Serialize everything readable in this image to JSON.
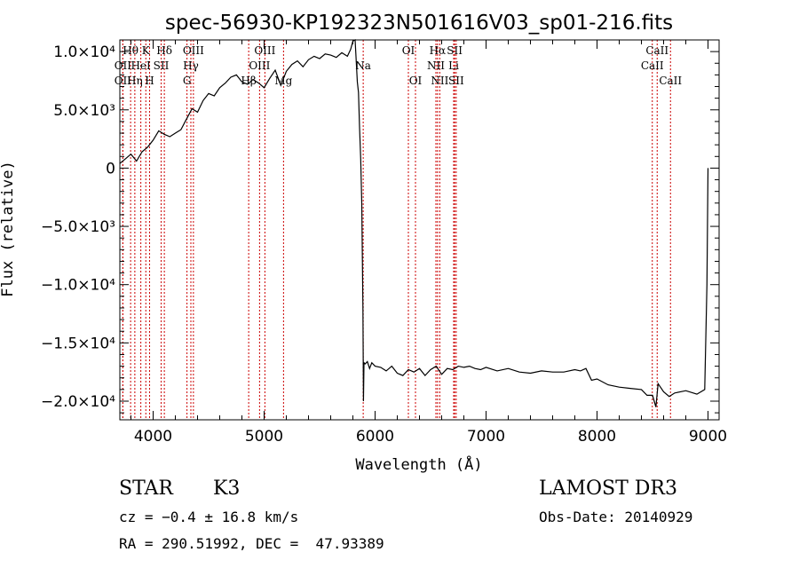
{
  "chart_data": {
    "type": "line",
    "title": "spec-56930-KP192323N501616V03_sp01-216.fits",
    "xlabel": "Wavelength (Å)",
    "ylabel": "Flux (relative)",
    "xlim": [
      3700,
      9100
    ],
    "ylim": [
      -21600,
      11000
    ],
    "x_ticks": [
      {
        "value": 4000,
        "label": "4000"
      },
      {
        "value": 5000,
        "label": "5000"
      },
      {
        "value": 6000,
        "label": "6000"
      },
      {
        "value": 7000,
        "label": "7000"
      },
      {
        "value": 8000,
        "label": "8000"
      },
      {
        "value": 9000,
        "label": "9000"
      }
    ],
    "y_ticks": [
      {
        "value": 10000,
        "label": "1.0×10⁴"
      },
      {
        "value": 5000,
        "label": "5.0×10³"
      },
      {
        "value": 0,
        "label": "0"
      },
      {
        "value": -5000,
        "label": "−5.0×10³"
      },
      {
        "value": -10000,
        "label": "−1.0×10⁴"
      },
      {
        "value": -15000,
        "label": "−1.5×10⁴"
      },
      {
        "value": -20000,
        "label": "−2.0×10⁴"
      }
    ],
    "spectrum": {
      "name": "flux",
      "x": [
        3700,
        3750,
        3800,
        3850,
        3900,
        3950,
        4000,
        4050,
        4100,
        4150,
        4200,
        4250,
        4300,
        4350,
        4400,
        4450,
        4500,
        4550,
        4600,
        4650,
        4700,
        4750,
        4800,
        4850,
        4900,
        4950,
        5000,
        5050,
        5100,
        5150,
        5200,
        5250,
        5300,
        5350,
        5400,
        5450,
        5500,
        5550,
        5600,
        5650,
        5700,
        5750,
        5780,
        5800,
        5820,
        5840,
        5850,
        5860,
        5870,
        5880,
        5890,
        5895,
        5900,
        5910,
        5930,
        5950,
        5970,
        6000,
        6050,
        6100,
        6150,
        6200,
        6250,
        6300,
        6350,
        6400,
        6450,
        6500,
        6550,
        6600,
        6650,
        6700,
        6750,
        6800,
        6850,
        6900,
        6950,
        7000,
        7100,
        7200,
        7300,
        7400,
        7500,
        7600,
        7700,
        7800,
        7850,
        7900,
        7950,
        8000,
        8100,
        8200,
        8300,
        8400,
        8450,
        8500,
        8530,
        8550,
        8600,
        8650,
        8700,
        8800,
        8900,
        8970,
        8990,
        9000
      ],
      "y": [
        400,
        800,
        1200,
        600,
        1400,
        1800,
        2400,
        3200,
        2900,
        2700,
        3000,
        3300,
        4200,
        5100,
        4800,
        5800,
        6400,
        6200,
        6900,
        7300,
        7800,
        8000,
        7400,
        7200,
        7600,
        7300,
        6900,
        7700,
        8400,
        7100,
        8300,
        8900,
        9200,
        8700,
        9300,
        9600,
        9400,
        9800,
        9700,
        9500,
        9900,
        9600,
        10200,
        10900,
        11000,
        7400,
        6500,
        3500,
        800,
        -3000,
        -12000,
        -20000,
        -16700,
        -16800,
        -16600,
        -17200,
        -16700,
        -17000,
        -17100,
        -17400,
        -17000,
        -17600,
        -17800,
        -17300,
        -17500,
        -17200,
        -17800,
        -17300,
        -17000,
        -17700,
        -17200,
        -17300,
        -17000,
        -17100,
        -17000,
        -17200,
        -17300,
        -17100,
        -17400,
        -17200,
        -17500,
        -17600,
        -17400,
        -17500,
        -17500,
        -17300,
        -17400,
        -17200,
        -18200,
        -18100,
        -18600,
        -18800,
        -18900,
        -19000,
        -19500,
        -19500,
        -20500,
        -18500,
        -19200,
        -19600,
        -19300,
        -19100,
        -19400,
        -19000,
        -10000,
        0
      ]
    },
    "spectral_lines": [
      {
        "name": "Hθ",
        "x": 3797,
        "row": 0
      },
      {
        "name": "OII",
        "x": 3727,
        "row": 1
      },
      {
        "name": "OII",
        "x": 3727,
        "row": 2
      },
      {
        "name": "Hη",
        "x": 3835,
        "row": 2
      },
      {
        "name": "K",
        "x": 3934,
        "row": 0
      },
      {
        "name": "HeI",
        "x": 3889,
        "row": 1
      },
      {
        "name": "H",
        "x": 3968,
        "row": 2
      },
      {
        "name": "Hδ",
        "x": 4101,
        "row": 0
      },
      {
        "name": "SII",
        "x": 4072,
        "row": 1
      },
      {
        "name": "OIII",
        "x": 4363,
        "row": 0
      },
      {
        "name": "Hγ",
        "x": 4340,
        "row": 1
      },
      {
        "name": "G",
        "x": 4305,
        "row": 2
      },
      {
        "name": "Hβ",
        "x": 4861,
        "row": 2
      },
      {
        "name": "OIII",
        "x": 5007,
        "row": 0
      },
      {
        "name": "OIII",
        "x": 4959,
        "row": 1
      },
      {
        "name": "Mg",
        "x": 5175,
        "row": 2
      },
      {
        "name": "Na",
        "x": 5893,
        "row": 1
      },
      {
        "name": "OI",
        "x": 6300,
        "row": 0
      },
      {
        "name": "OI",
        "x": 6364,
        "row": 2
      },
      {
        "name": "Hα",
        "x": 6563,
        "row": 0
      },
      {
        "name": "NII",
        "x": 6548,
        "row": 1
      },
      {
        "name": "NII",
        "x": 6583,
        "row": 2
      },
      {
        "name": "SII",
        "x": 6717,
        "row": 0
      },
      {
        "name": "Li",
        "x": 6708,
        "row": 1
      },
      {
        "name": "SII",
        "x": 6731,
        "row": 2
      },
      {
        "name": "CaII",
        "x": 8542,
        "row": 0
      },
      {
        "name": "CaII",
        "x": 8498,
        "row": 1
      },
      {
        "name": "CaII",
        "x": 8662,
        "row": 2
      }
    ],
    "line_color": "#000000",
    "marker_color": "#cc0000"
  },
  "info": {
    "object_class": "STAR",
    "subclass": "K3",
    "survey": "LAMOST DR3",
    "cz": "cz = −0.4 ± 16.8 km/s",
    "obs_date": "Obs-Date: 20140929",
    "coords": "RA = 290.51992, DEC =  47.93389"
  }
}
